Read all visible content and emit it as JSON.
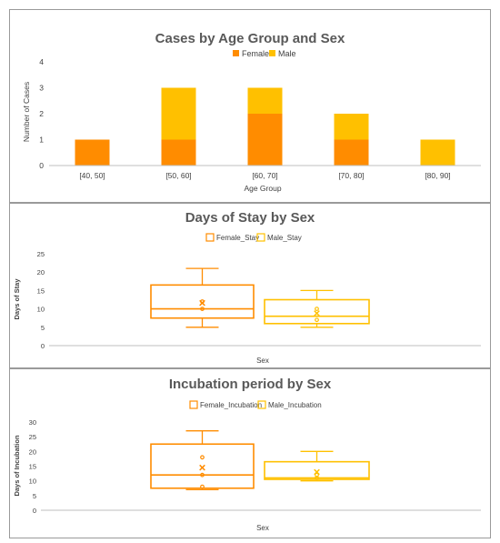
{
  "colors": {
    "female": "#FF8C00",
    "male": "#FFC000",
    "axis": "#bfbfbf",
    "text": "#404040",
    "title": "#595959"
  },
  "chart_data": [
    {
      "type": "bar",
      "stacked": true,
      "title": "Cases by Age Group and Sex",
      "xlabel": "Age Group",
      "ylabel": "Number of Cases",
      "categories": [
        "[40, 50]",
        "[50, 60]",
        "[60, 70]",
        "[70, 80]",
        "[80, 90]"
      ],
      "series": [
        {
          "name": "Female",
          "values": [
            1,
            1,
            2,
            1,
            0
          ]
        },
        {
          "name": "Male",
          "values": [
            0,
            2,
            1,
            1,
            1
          ]
        }
      ],
      "ylim": [
        0,
        4
      ],
      "yticks": [
        "0",
        "1",
        "2",
        "3",
        "4"
      ],
      "legend": "top",
      "grid": false
    },
    {
      "type": "box",
      "title": "Days of Stay by Sex",
      "xlabel": "Sex",
      "ylabel": "Days of Stay",
      "ylim": [
        0,
        25
      ],
      "yticks": [
        "0",
        "5",
        "10",
        "15",
        "20",
        "25"
      ],
      "legend": "top",
      "series": [
        {
          "name": "Female_Stay",
          "min": 5,
          "q1": 7.5,
          "median": 10,
          "q3": 16.5,
          "max": 21,
          "mean": 11.6,
          "points": [
            10,
            12
          ]
        },
        {
          "name": "Male_Stay",
          "min": 5,
          "q1": 6,
          "median": 8,
          "q3": 12.5,
          "max": 15,
          "mean": 8.8,
          "points": [
            7,
            10
          ]
        }
      ]
    },
    {
      "type": "box",
      "title": "Incubation period by Sex",
      "xlabel": "Sex",
      "ylabel": "Days of Incubation",
      "ylim": [
        0,
        30
      ],
      "yticks": [
        "0",
        "5",
        "10",
        "15",
        "20",
        "25",
        "30"
      ],
      "legend": "top",
      "series": [
        {
          "name": "Female_Incubation",
          "min": 7,
          "q1": 7.5,
          "median": 12,
          "q3": 22.5,
          "max": 27,
          "mean": 14.5,
          "points": [
            8,
            12,
            18
          ]
        },
        {
          "name": "Male_Incubation",
          "min": 10,
          "q1": 10.5,
          "median": 11,
          "q3": 16.5,
          "max": 20,
          "mean": 13,
          "points": [
            11,
            12
          ]
        }
      ]
    }
  ]
}
